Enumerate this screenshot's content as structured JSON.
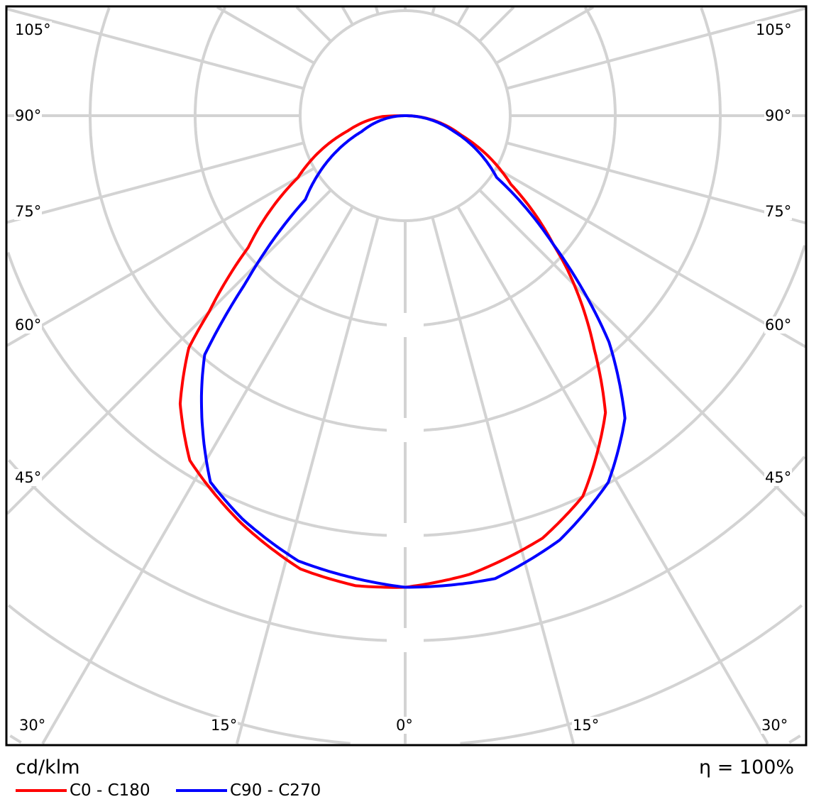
{
  "chart_data": {
    "type": "polar-line",
    "title": "",
    "unit_label": "cd/klm",
    "efficiency_label": "η = 100%",
    "angle_labels_left": [
      "105°",
      "90°",
      "75°",
      "60°",
      "45°",
      "30°"
    ],
    "angle_labels_right": [
      "105°",
      "90°",
      "75°",
      "60°",
      "45°",
      "30°"
    ],
    "angle_labels_bottom": [
      "30°",
      "15°",
      "0°",
      "15°",
      "30°"
    ],
    "radial_tick_labels_visible": false,
    "grid": true,
    "spoke_step_deg": 15,
    "legend_position": "bottom-left",
    "series": [
      {
        "name": "C0 - C180",
        "color": "#ff0000",
        "left_half": [
          [
            0,
            449
          ],
          [
            6,
            450
          ],
          [
            13,
            443
          ],
          [
            22,
            418
          ],
          [
            32,
            387
          ],
          [
            38,
            348
          ],
          [
            43,
            302
          ],
          [
            45,
            264
          ],
          [
            50,
            195
          ],
          [
            60,
            118
          ],
          [
            75,
            57
          ],
          [
            88,
            21
          ],
          [
            90,
            0
          ]
        ],
        "right_half": [
          [
            0,
            449
          ],
          [
            8,
            441
          ],
          [
            18,
            423
          ],
          [
            25,
            400
          ],
          [
            34,
            341
          ],
          [
            39,
            286
          ],
          [
            46.5,
            213
          ],
          [
            49,
            187
          ],
          [
            57,
            120
          ],
          [
            71,
            56
          ],
          [
            90,
            0
          ]
        ]
      },
      {
        "name": "C90 - C270",
        "color": "#0000ff",
        "left_half": [
          [
            0,
            449
          ],
          [
            13.5,
            436
          ],
          [
            22,
            414
          ],
          [
            28,
            395
          ],
          [
            36,
            330
          ],
          [
            40,
            297
          ],
          [
            43.6,
            221
          ],
          [
            45.6,
            190
          ],
          [
            50,
            124
          ],
          [
            70,
            44
          ],
          [
            90,
            0
          ]
        ],
        "right_half": [
          [
            0,
            449
          ],
          [
            11,
            449
          ],
          [
            20,
            430
          ],
          [
            29,
            399
          ],
          [
            36,
            356
          ],
          [
            42,
            290
          ],
          [
            46.5,
            223
          ],
          [
            49,
            187
          ],
          [
            56,
            105
          ],
          [
            72,
            49
          ],
          [
            90,
            0
          ]
        ]
      }
    ]
  }
}
